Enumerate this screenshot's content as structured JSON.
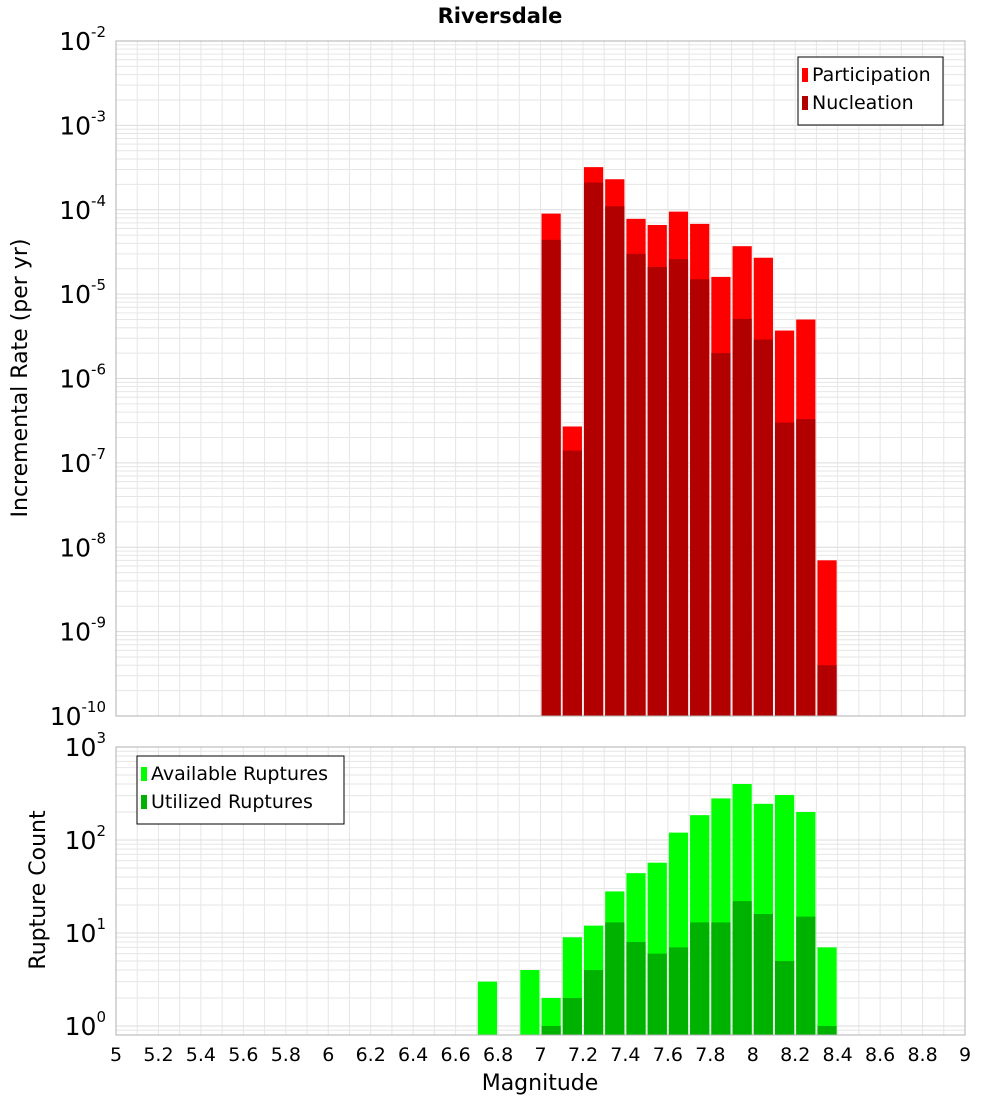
{
  "title": "Riversdale",
  "colors": {
    "participation": "#ff0000",
    "nucleation": "#b20000",
    "available": "#00ff00",
    "utilized": "#00b200",
    "grid": "#e6e6e6",
    "frame": "#b0b0b0"
  },
  "chart_data": [
    {
      "type": "bar",
      "panel": "top",
      "title": "Riversdale",
      "xlabel": "",
      "ylabel": "Incremental Rate (per yr)",
      "yscale": "log",
      "ylim": [
        1e-10,
        0.01
      ],
      "xlim": [
        5,
        9
      ],
      "grid": true,
      "legend_position": "top-right",
      "y_tick_labels": [
        {
          "base": "10",
          "exp": "-10",
          "value": 1e-10
        },
        {
          "base": "10",
          "exp": "-9",
          "value": 1e-09
        },
        {
          "base": "10",
          "exp": "-8",
          "value": 1e-08
        },
        {
          "base": "10",
          "exp": "-7",
          "value": 1e-07
        },
        {
          "base": "10",
          "exp": "-6",
          "value": 1e-06
        },
        {
          "base": "10",
          "exp": "-5",
          "value": 1e-05
        },
        {
          "base": "10",
          "exp": "-4",
          "value": 0.0001
        },
        {
          "base": "10",
          "exp": "-3",
          "value": 0.001
        },
        {
          "base": "10",
          "exp": "-2",
          "value": 0.01
        }
      ],
      "x": [
        7.05,
        7.15,
        7.25,
        7.35,
        7.45,
        7.55,
        7.65,
        7.75,
        7.85,
        7.95,
        8.05,
        8.15,
        8.25,
        8.35
      ],
      "series": [
        {
          "name": "Participation",
          "color": "#ff0000",
          "values": [
            9e-05,
            2.7e-07,
            0.00032,
            0.00023,
            7.8e-05,
            6.6e-05,
            9.5e-05,
            6.8e-05,
            1.6e-05,
            3.7e-05,
            2.7e-05,
            3.7e-06,
            5e-06,
            7e-09
          ]
        },
        {
          "name": "Nucleation",
          "color": "#b20000",
          "values": [
            4.4e-05,
            1.4e-07,
            0.00021,
            0.00011,
            3e-05,
            2.1e-05,
            2.6e-05,
            1.5e-05,
            2e-06,
            5.1e-06,
            2.9e-06,
            3e-07,
            3.3e-07,
            4e-10
          ]
        }
      ]
    },
    {
      "type": "bar",
      "panel": "bottom",
      "xlabel": "Magnitude",
      "ylabel": "Rupture Count",
      "yscale": "log",
      "ylim": [
        0.8,
        1000
      ],
      "xlim": [
        5,
        9
      ],
      "grid": true,
      "legend_position": "top-left",
      "y_tick_labels": [
        {
          "base": "10",
          "exp": "0",
          "value": 1
        },
        {
          "base": "10",
          "exp": "1",
          "value": 10
        },
        {
          "base": "10",
          "exp": "2",
          "value": 100
        },
        {
          "base": "10",
          "exp": "3",
          "value": 1000
        }
      ],
      "x_tick_labels": [
        "5",
        "5.2",
        "5.4",
        "5.6",
        "5.8",
        "6",
        "6.2",
        "6.4",
        "6.6",
        "6.8",
        "7",
        "7.2",
        "7.4",
        "7.6",
        "7.8",
        "8",
        "8.2",
        "8.4",
        "8.6",
        "8.8",
        "9"
      ],
      "x_tick_values": [
        5,
        5.2,
        5.4,
        5.6,
        5.8,
        6,
        6.2,
        6.4,
        6.6,
        6.8,
        7,
        7.2,
        7.4,
        7.6,
        7.8,
        8,
        8.2,
        8.4,
        8.6,
        8.8,
        9
      ],
      "x": [
        6.75,
        6.95,
        7.05,
        7.15,
        7.25,
        7.35,
        7.45,
        7.55,
        7.65,
        7.75,
        7.85,
        7.95,
        8.05,
        8.15,
        8.25,
        8.35
      ],
      "series": [
        {
          "name": "Available Ruptures",
          "color": "#00ff00",
          "values": [
            3,
            4,
            2,
            9,
            12,
            28,
            44,
            57,
            120,
            185,
            280,
            400,
            245,
            305,
            200,
            7
          ]
        },
        {
          "name": "Utilized Ruptures",
          "color": "#00b200",
          "values": [
            0,
            0,
            1,
            2,
            4,
            13,
            8,
            6,
            7,
            13,
            13,
            22,
            16,
            5,
            15,
            1
          ]
        }
      ]
    }
  ]
}
